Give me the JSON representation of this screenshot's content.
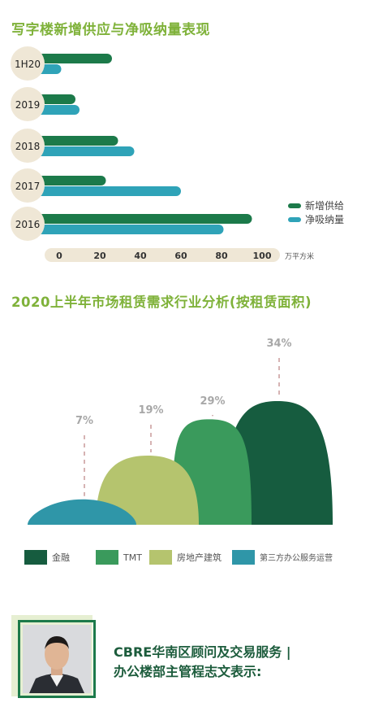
{
  "section1": {
    "title": "写字楼新增供应与净吸纳量表现"
  },
  "section2": {
    "title": "2020上半年市场租赁需求行业分析(按租赁面积)"
  },
  "colors": {
    "green_dark": "#1c7a4a",
    "teal": "#2fa3b8",
    "title_green": "#7fb23a"
  },
  "chart_data": [
    {
      "type": "bar",
      "orientation": "horizontal",
      "categories": [
        "1H20",
        "2019",
        "2018",
        "2017",
        "2016"
      ],
      "series": [
        {
          "name": "新增供给",
          "color": "#1c7a4a",
          "values": [
            26,
            8,
            29,
            23,
            95
          ]
        },
        {
          "name": "净吸纳量",
          "color": "#2fa3b8",
          "values": [
            1,
            10,
            37,
            60,
            81
          ]
        }
      ],
      "xticks": [
        "0",
        "20",
        "40",
        "60",
        "80",
        "100"
      ],
      "xlim": [
        0,
        100
      ],
      "unit": "万平方米",
      "legend": "right"
    },
    {
      "type": "area",
      "style": "mountain",
      "series": [
        {
          "name": "金融",
          "value": 34,
          "label": "34%",
          "color": "#165c3f"
        },
        {
          "name": "TMT",
          "value": 29,
          "label": "29%",
          "color": "#3a9a5c"
        },
        {
          "name": "房地产建筑",
          "value": 19,
          "label": "19%",
          "color": "#b5c46e"
        },
        {
          "name": "第三方办公服务运营",
          "value": 7,
          "label": "7%",
          "color": "#2f96a8"
        }
      ],
      "legend": "bottom"
    }
  ],
  "footer": {
    "quote_line1": "CBRE华南区顾问及交易服务 |",
    "quote_line2": "办公楼部主管程志文表示:"
  }
}
